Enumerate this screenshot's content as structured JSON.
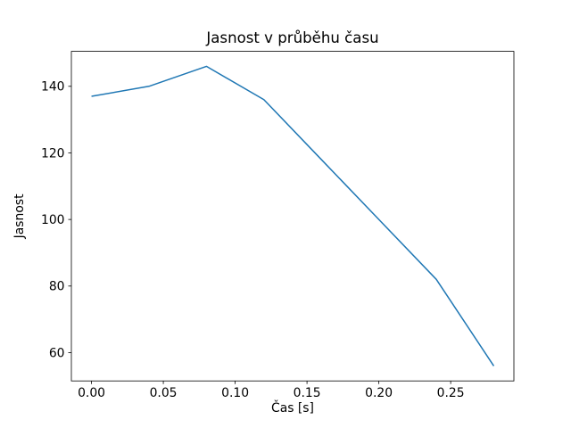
{
  "figure": {
    "background": "#ffffff",
    "spine_color": "#000000",
    "spine_width": 0.8
  },
  "chart_data": {
    "type": "line",
    "title": "Jasnost v průběhu času",
    "xlabel": "Čas [s]",
    "ylabel": "Jasnost",
    "x": [
      0.0,
      0.04,
      0.08,
      0.12,
      0.16,
      0.2,
      0.24,
      0.28
    ],
    "y": [
      137,
      140,
      146,
      136,
      118,
      100,
      82,
      56
    ],
    "series_name": "Jasnost",
    "line_color": "#1f77b4",
    "line_width": 1.5,
    "markers": false,
    "grid": false,
    "legend": null,
    "xlim": [
      -0.014,
      0.294
    ],
    "ylim": [
      51.5,
      150.5
    ],
    "xticks": [
      0.0,
      0.05,
      0.1,
      0.15,
      0.2,
      0.25
    ],
    "xtick_labels": [
      "0.00",
      "0.05",
      "0.10",
      "0.15",
      "0.20",
      "0.25"
    ],
    "yticks": [
      60,
      80,
      100,
      120,
      140
    ],
    "ytick_labels": [
      "60",
      "80",
      "100",
      "120",
      "140"
    ]
  }
}
